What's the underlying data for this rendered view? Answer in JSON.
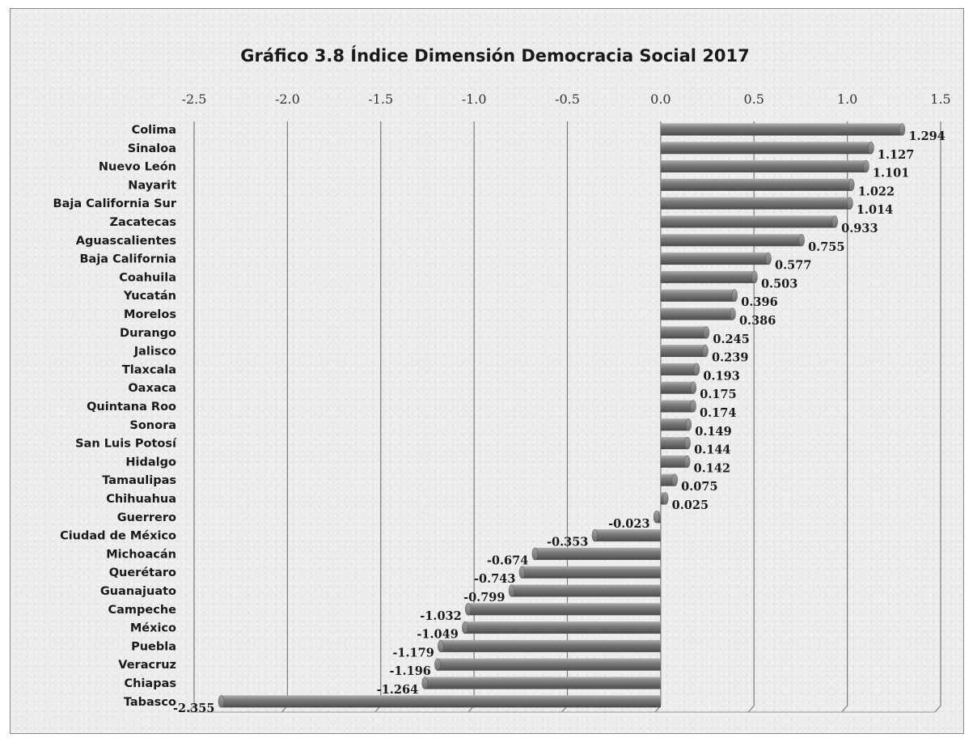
{
  "chart_data": {
    "type": "bar",
    "orientation": "horizontal",
    "title": "Gráfico 3.8 Índice Dimensión Democracia Social 2017",
    "xlabel": "",
    "ylabel": "",
    "xlim": [
      -2.5,
      1.5
    ],
    "x_ticks": [
      "-2.5",
      "-2.0",
      "-1.5",
      "-1.0",
      "-0.5",
      "0.0",
      "0.5",
      "1.0",
      "1.5"
    ],
    "x_tick_values": [
      -2.5,
      -2.0,
      -1.5,
      -1.0,
      -0.5,
      0.0,
      0.5,
      1.0,
      1.5
    ],
    "axis_position": "top",
    "grid": true,
    "legend": "none",
    "bar_color": "#8c8c8c",
    "categories": [
      "Colima",
      "Sinaloa",
      "Nuevo León",
      "Nayarit",
      "Baja California Sur",
      "Zacatecas",
      "Aguascalientes",
      "Baja California",
      "Coahuila",
      "Yucatán",
      "Morelos",
      "Durango",
      "Jalisco",
      "Tlaxcala",
      "Oaxaca",
      "Quintana Roo",
      "Sonora",
      "San Luis Potosí",
      "Hidalgo",
      "Tamaulipas",
      "Chihuahua",
      "Guerrero",
      "Ciudad de México",
      "Michoacán",
      "Querétaro",
      "Guanajuato",
      "Campeche",
      "México",
      "Puebla",
      "Veracruz",
      "Chiapas",
      "Tabasco"
    ],
    "values": [
      1.294,
      1.127,
      1.101,
      1.022,
      1.014,
      0.933,
      0.755,
      0.577,
      0.503,
      0.396,
      0.386,
      0.245,
      0.239,
      0.193,
      0.175,
      0.174,
      0.149,
      0.144,
      0.142,
      0.075,
      0.025,
      -0.023,
      -0.353,
      -0.674,
      -0.743,
      -0.799,
      -1.032,
      -1.049,
      -1.179,
      -1.196,
      -1.264,
      -2.355
    ],
    "value_labels": [
      "1.294",
      "1.127",
      "1.101",
      "1.022",
      "1.014",
      "0.933",
      "0.755",
      "0.577",
      "0.503",
      "0.396",
      "0.386",
      "0.245",
      "0.239",
      "0.193",
      "0.175",
      "0.174",
      "0.149",
      "0.144",
      "0.142",
      "0.075",
      "0.025",
      "-0.023",
      "-0.353",
      "-0.674",
      "-0.743",
      "-0.799",
      "-1.032",
      "-1.049",
      "-1.179",
      "-1.196",
      "-1.264",
      "-2.355"
    ]
  }
}
